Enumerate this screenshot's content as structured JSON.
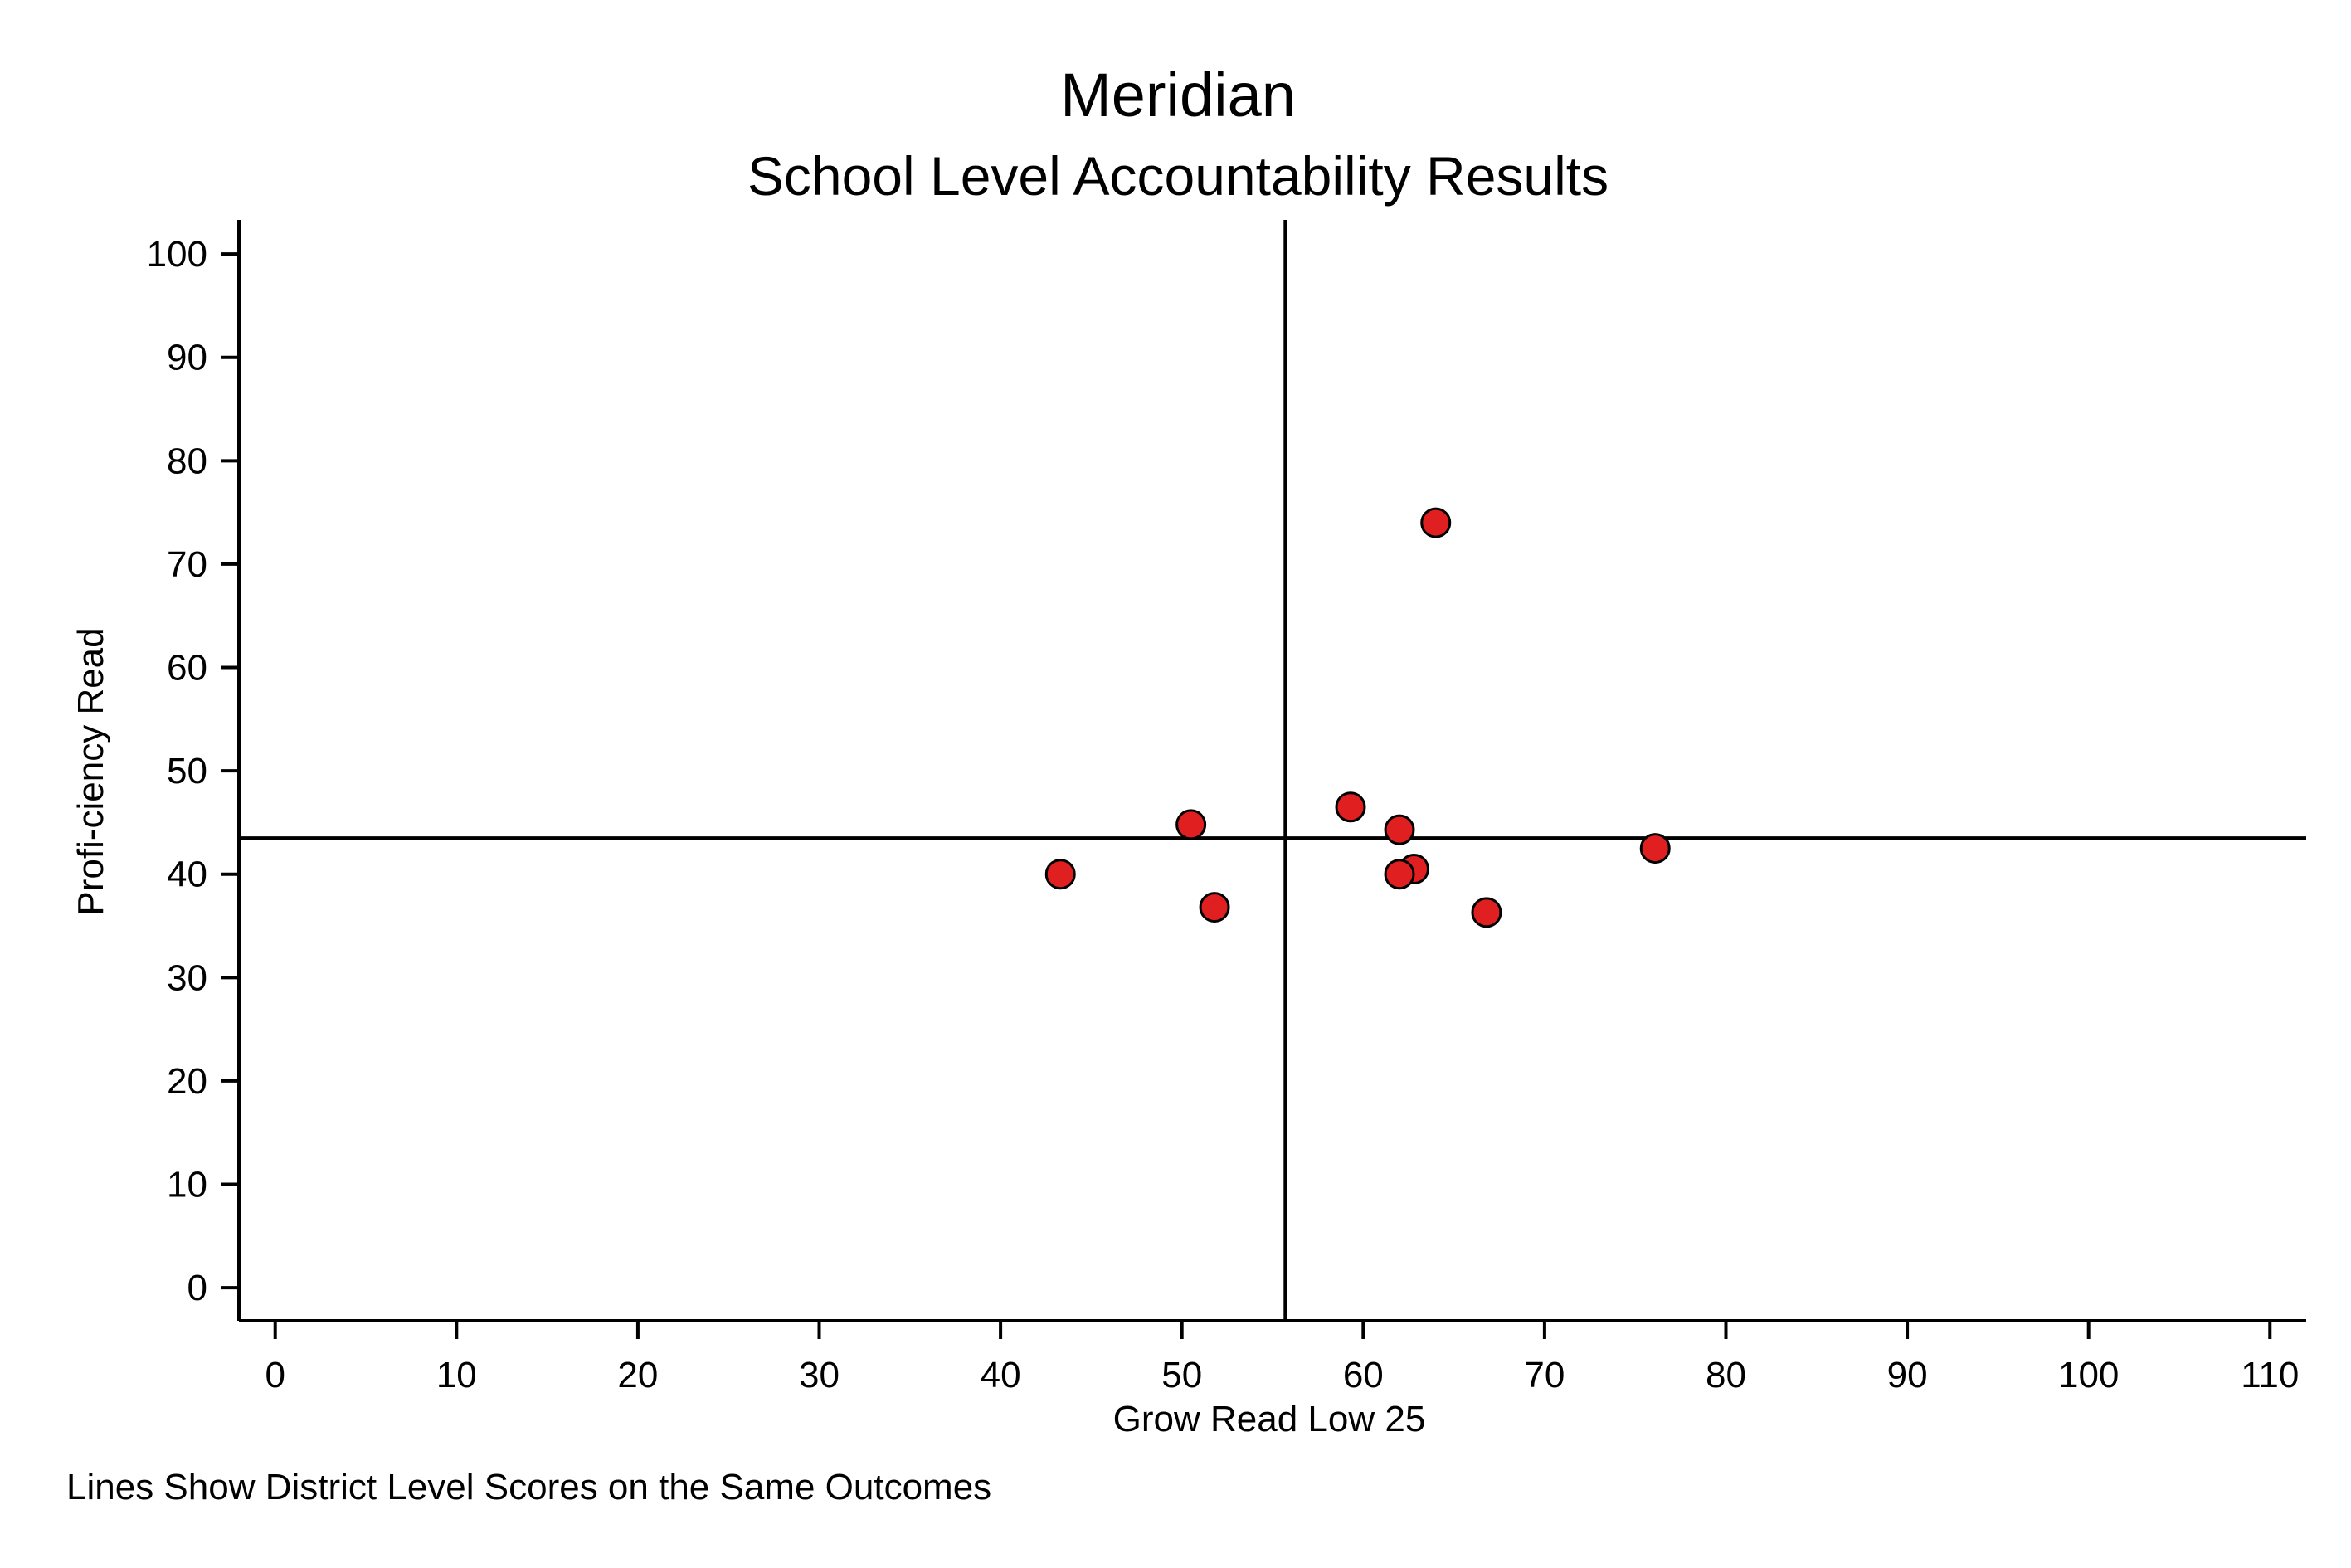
{
  "chart_data": {
    "type": "scatter",
    "title": "Meridian",
    "subtitle": "School Level Accountability Results",
    "xlabel": "Grow Read Low 25",
    "ylabel": "Profi-ciency Read",
    "note": "Lines Show District Level Scores on the Same Outcomes",
    "xlim": [
      -2,
      112
    ],
    "ylim": [
      -3.2,
      103.3
    ],
    "x_ticks": [
      0,
      10,
      20,
      30,
      40,
      50,
      60,
      70,
      80,
      90,
      100,
      110
    ],
    "y_ticks": [
      0,
      10,
      20,
      30,
      40,
      50,
      60,
      70,
      80,
      90,
      100
    ],
    "reference_lines": {
      "x": 55.7,
      "y": 43.5
    },
    "grid": false,
    "marker_color": "#e02020",
    "marker_edge_color": "#000000",
    "points": [
      {
        "x": 43.3,
        "y": 40.0
      },
      {
        "x": 50.5,
        "y": 44.8
      },
      {
        "x": 51.8,
        "y": 36.8
      },
      {
        "x": 59.3,
        "y": 46.5
      },
      {
        "x": 62.0,
        "y": 44.3
      },
      {
        "x": 62.8,
        "y": 40.5
      },
      {
        "x": 62.0,
        "y": 40.0
      },
      {
        "x": 64.0,
        "y": 74.0
      },
      {
        "x": 66.8,
        "y": 36.3
      },
      {
        "x": 76.1,
        "y": 42.5
      }
    ]
  }
}
